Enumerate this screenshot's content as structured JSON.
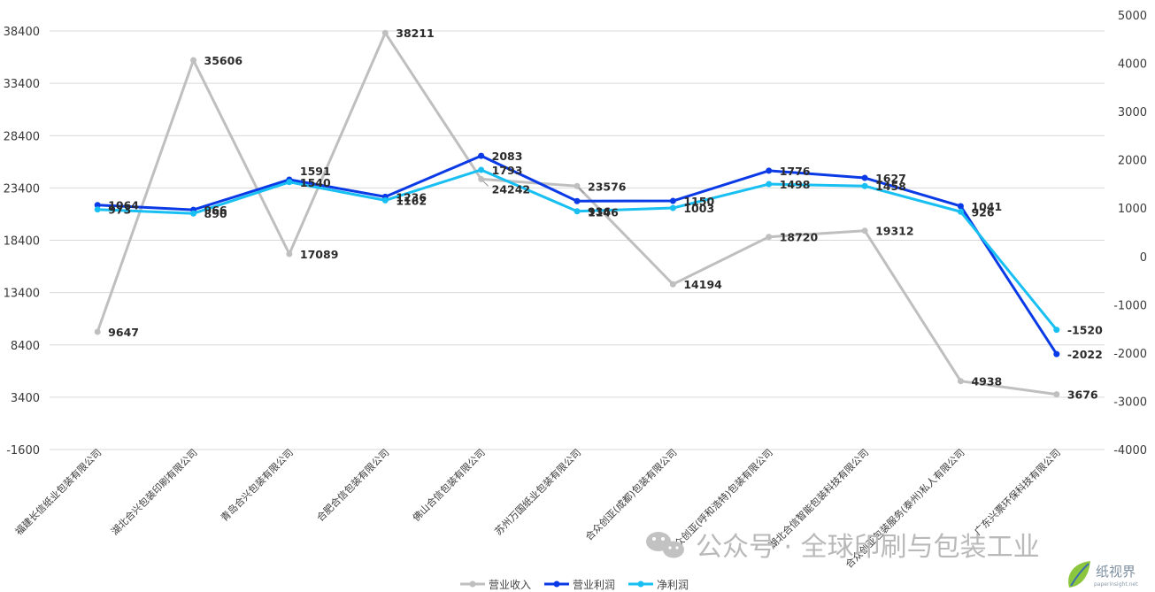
{
  "chart_data": {
    "type": "line",
    "title": "",
    "xlabel": "",
    "ylabel": "",
    "categories": [
      "福建长信纸业包装有限公司",
      "湖北合兴包装印刷有限公司",
      "青岛合兴包装有限公司",
      "合肥合信包装有限公司",
      "佛山合信包装有限公司",
      "苏州万国纸业包装有限公司",
      "合众创亚(成都)包装有限公司",
      "合众创亚(呼和浩特)包装有限公司",
      "湖北合信智能包装科技有限公司",
      "合众创亚包装服务(泰州)私人有限公司",
      "广东兴票环保科技有限公司"
    ],
    "left_axis": {
      "min": -1600,
      "max": 38400,
      "ticks": [
        "38400",
        "33400",
        "28400",
        "23400",
        "18400",
        "13400",
        "8400",
        "3400",
        "-1600"
      ]
    },
    "right_axis": {
      "min": -4000,
      "max": 5000,
      "ticks": [
        "5000",
        "4000",
        "3000",
        "2000",
        "1000",
        "0",
        "-1000",
        "-2000",
        "-3000",
        "-4000"
      ]
    },
    "series": [
      {
        "name": "营业收入",
        "axis": "left",
        "color": "#bfbfbf",
        "values": [
          9647,
          35606,
          17089,
          38211,
          24242,
          23576,
          14194,
          18720,
          19312,
          4938,
          3676
        ],
        "labels": [
          "9647",
          "35606",
          "17089",
          "38211",
          "24242",
          "23576",
          "14194",
          "18720",
          "19312",
          "4938",
          "3676"
        ]
      },
      {
        "name": "营业利润",
        "axis": "right",
        "color": "#0a3ae6",
        "values": [
          1064,
          966,
          1591,
          1236,
          2083,
          1146,
          1150,
          1776,
          1627,
          1041,
          -2022
        ],
        "labels": [
          "1064",
          "966",
          "1591",
          "1236",
          "2083",
          "1146",
          "1150",
          "1776",
          "1627",
          "1041",
          "-2022"
        ]
      },
      {
        "name": "净利润",
        "axis": "right",
        "color": "#18bff2",
        "values": [
          973,
          890,
          1540,
          1162,
          1793,
          936,
          1003,
          1498,
          1458,
          926,
          -1520
        ],
        "labels": [
          "973",
          "890",
          "1540",
          "1162",
          "1793",
          "936",
          "1003",
          "1498",
          "1458",
          "926",
          "-1520"
        ]
      }
    ],
    "grid": true,
    "legend": "bottom-center"
  },
  "watermark": {
    "text": "公众号 · 全球印刷与包装工业",
    "logo_text": "纸视界",
    "logo_url": "paperinsight.net"
  }
}
